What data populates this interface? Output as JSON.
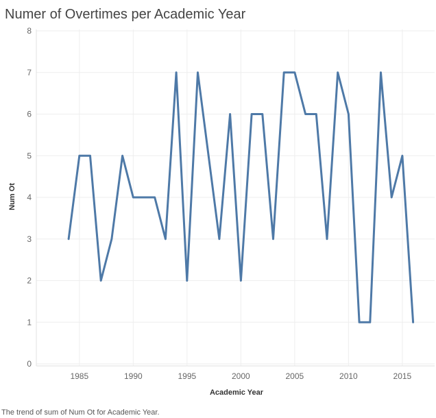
{
  "chart_data": {
    "type": "line",
    "title": "Numer of Overtimes per Academic Year",
    "caption": "The trend of sum of Num Ot for Academic Year.",
    "xlabel": "Academic Year",
    "ylabel": "Num Ot",
    "xlim": [
      1981,
      2018
    ],
    "ylim": [
      0,
      8
    ],
    "xticks": [
      1985,
      1990,
      1995,
      2000,
      2005,
      2010,
      2015
    ],
    "yticks": [
      0,
      1,
      2,
      3,
      4,
      5,
      6,
      7,
      8
    ],
    "grid": true,
    "series": [
      {
        "name": "Num Ot",
        "color": "#4e79a7",
        "x": [
          1984,
          1985,
          1986,
          1987,
          1988,
          1989,
          1990,
          1991,
          1992,
          1993,
          1994,
          1995,
          1996,
          1997,
          1998,
          1999,
          2000,
          2001,
          2002,
          2003,
          2004,
          2005,
          2006,
          2007,
          2008,
          2009,
          2010,
          2011,
          2012,
          2013,
          2014,
          2015,
          2016
        ],
        "values": [
          3,
          5,
          5,
          2,
          3,
          5,
          4,
          4,
          4,
          3,
          7,
          2,
          7,
          5,
          3,
          6,
          2,
          6,
          6,
          3,
          7,
          7,
          6,
          6,
          3,
          7,
          6,
          1,
          1,
          7,
          4,
          5,
          1
        ]
      }
    ]
  }
}
